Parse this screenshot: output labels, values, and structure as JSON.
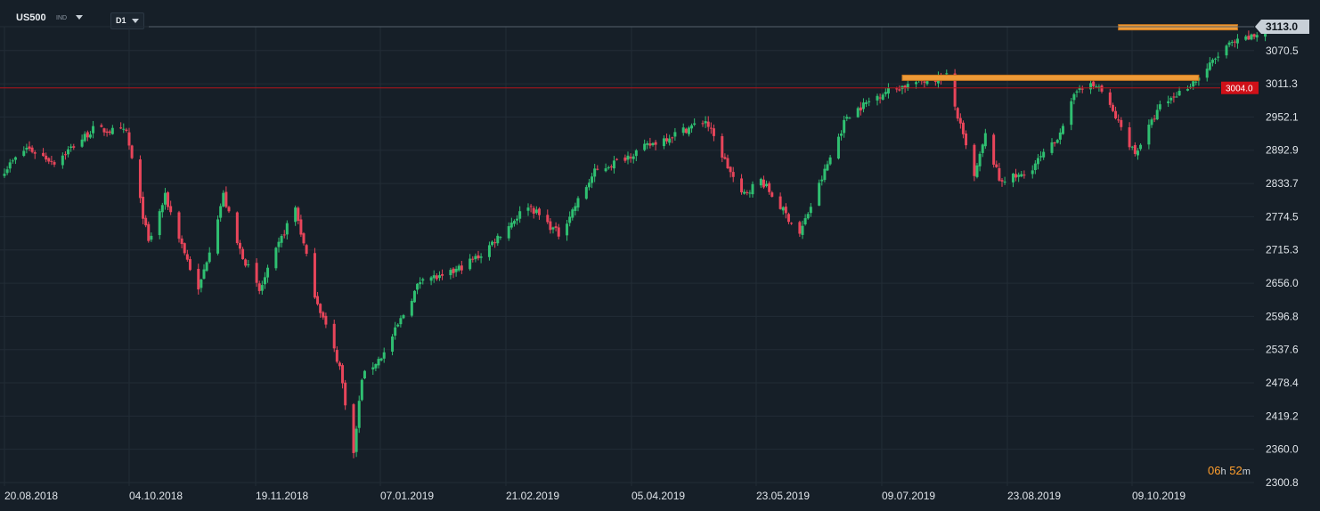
{
  "toolbar": {
    "symbol": "US500",
    "instrument_type": "IND",
    "timeframe": "D1",
    "symbol_dropdown_icon": "chevron-down-icon",
    "timeframe_dropdown_icon": "chevron-down-icon"
  },
  "timer": {
    "hours": "06",
    "h_unit": "h",
    "minutes": "52",
    "m_unit": "m"
  },
  "colors": {
    "background": "#161f28",
    "up_candle": "#2fbf71",
    "down_candle": "#e8455a",
    "grid": "#222c36",
    "level_line": "#b3131b",
    "highlight_bar": "#ee9a37",
    "current_price_tag": "#c8d0d8"
  },
  "chart_data": {
    "type": "candlestick",
    "instrument": "US500",
    "timeframe": "D1",
    "y_ticks": [
      "3113.0",
      "3070.5",
      "3011.3",
      "2952.1",
      "2892.9",
      "2833.7",
      "2774.5",
      "2715.3",
      "2656.0",
      "2596.8",
      "2537.6",
      "2478.4",
      "2419.2",
      "2360.0",
      "2300.8"
    ],
    "x_ticks": [
      "20.08.2018",
      "04.10.2018",
      "19.11.2018",
      "07.01.2019",
      "21.02.2019",
      "05.04.2019",
      "23.05.2019",
      "09.07.2019",
      "23.08.2019",
      "09.10.2019"
    ],
    "ylim": [
      2300.8,
      3113.0
    ],
    "current_price": "3113.0",
    "horizontal_level": {
      "value": 3004.0,
      "label": "3004.0"
    },
    "resistance_zones": [
      {
        "from_date": "2019-07-10",
        "to_date": "2019-10-25",
        "price": 3022
      },
      {
        "from_date": "2019-09-26",
        "to_date": "2019-11-08",
        "price": 3112
      }
    ],
    "close_path": [
      [
        "2018-08-20",
        2858
      ],
      [
        "2018-08-28",
        2897
      ],
      [
        "2018-09-07",
        2872
      ],
      [
        "2018-09-21",
        2930
      ],
      [
        "2018-10-03",
        2925
      ],
      [
        "2018-10-11",
        2728
      ],
      [
        "2018-10-17",
        2810
      ],
      [
        "2018-10-29",
        2641
      ],
      [
        "2018-11-07",
        2813
      ],
      [
        "2018-11-12",
        2726
      ],
      [
        "2018-11-20",
        2641
      ],
      [
        "2018-11-30",
        2760
      ],
      [
        "2018-12-03",
        2790
      ],
      [
        "2018-12-10",
        2637
      ],
      [
        "2018-12-19",
        2507
      ],
      [
        "2018-12-24",
        2351
      ],
      [
        "2018-12-27",
        2488
      ],
      [
        "2019-01-04",
        2531
      ],
      [
        "2019-01-18",
        2670
      ],
      [
        "2019-01-25",
        2664
      ],
      [
        "2019-02-08",
        2707
      ],
      [
        "2019-02-25",
        2796
      ],
      [
        "2019-03-08",
        2743
      ],
      [
        "2019-03-21",
        2854
      ],
      [
        "2019-04-12",
        2907
      ],
      [
        "2019-04-30",
        2946
      ],
      [
        "2019-05-13",
        2812
      ],
      [
        "2019-05-20",
        2840
      ],
      [
        "2019-06-03",
        2744
      ],
      [
        "2019-06-20",
        2954
      ],
      [
        "2019-07-03",
        2996
      ],
      [
        "2019-07-15",
        3014
      ],
      [
        "2019-07-26",
        3025
      ],
      [
        "2019-08-05",
        2844
      ],
      [
        "2019-08-09",
        2919
      ],
      [
        "2019-08-14",
        2840
      ],
      [
        "2019-08-23",
        2848
      ],
      [
        "2019-09-03",
        2906
      ],
      [
        "2019-09-12",
        3009
      ],
      [
        "2019-09-19",
        3006
      ],
      [
        "2019-10-02",
        2887
      ],
      [
        "2019-10-11",
        2970
      ],
      [
        "2019-10-25",
        3022
      ],
      [
        "2019-11-04",
        3078
      ],
      [
        "2019-11-14",
        3096
      ],
      [
        "2019-11-19",
        3113
      ]
    ]
  }
}
